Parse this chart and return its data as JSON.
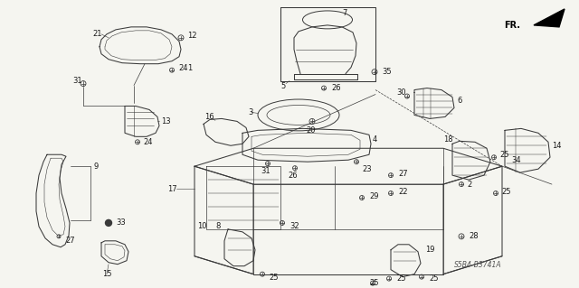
{
  "background_color": "#f5f5f0",
  "diagram_color": "#2a2a2a",
  "watermark": "S5B4-B3741A",
  "figsize": [
    6.4,
    3.19
  ],
  "dpi": 100,
  "line_color": "#3a3a3a",
  "label_color": "#1a1a1a"
}
